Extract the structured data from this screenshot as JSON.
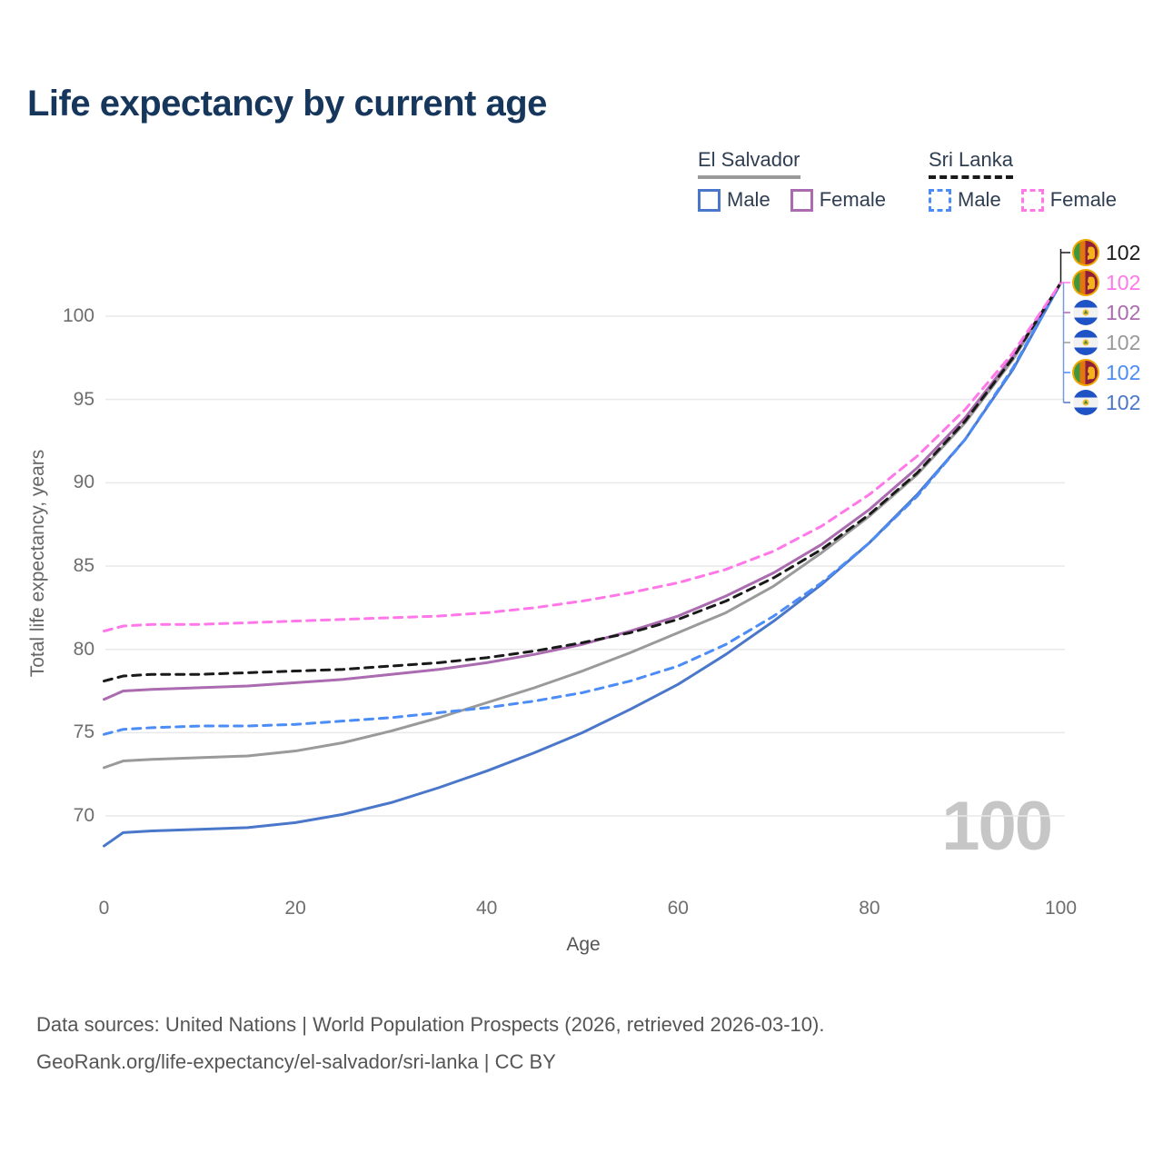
{
  "chart_data": {
    "type": "line",
    "title": "Life expectancy by current age",
    "xlabel": "Age",
    "ylabel": "Total life expectancy, years",
    "x_ticks": [
      0,
      20,
      40,
      60,
      80,
      100
    ],
    "y_ticks": [
      70,
      75,
      80,
      85,
      90,
      95,
      100
    ],
    "xlim": [
      0,
      100
    ],
    "ylim": [
      66,
      103
    ],
    "grid": "horizontal",
    "x": [
      0,
      2,
      5,
      10,
      15,
      20,
      25,
      30,
      35,
      40,
      45,
      50,
      55,
      60,
      65,
      70,
      75,
      80,
      85,
      90,
      95,
      100
    ],
    "series": [
      {
        "name": "El Salvador — Both sexes",
        "country": "El Salvador",
        "sex": "Both",
        "color": "#9a9a9a",
        "dashed": false,
        "values": [
          72.9,
          73.3,
          73.4,
          73.5,
          73.6,
          73.9,
          74.4,
          75.1,
          75.9,
          76.8,
          77.7,
          78.7,
          79.8,
          81.0,
          82.2,
          83.8,
          85.8,
          88.0,
          90.5,
          93.6,
          97.4,
          102
        ]
      },
      {
        "name": "El Salvador — Male",
        "country": "El Salvador",
        "sex": "Male",
        "color": "#4a77c9",
        "dashed": false,
        "values": [
          68.2,
          69.0,
          69.1,
          69.2,
          69.3,
          69.6,
          70.1,
          70.8,
          71.7,
          72.7,
          73.8,
          75.0,
          76.4,
          77.9,
          79.7,
          81.7,
          83.9,
          86.4,
          89.3,
          92.6,
          96.8,
          102
        ]
      },
      {
        "name": "El Salvador — Female",
        "country": "El Salvador",
        "sex": "Female",
        "color": "#ab6bb0",
        "dashed": false,
        "values": [
          77.0,
          77.5,
          77.6,
          77.7,
          77.8,
          78.0,
          78.2,
          78.5,
          78.8,
          79.2,
          79.7,
          80.3,
          81.1,
          82.0,
          83.2,
          84.6,
          86.3,
          88.4,
          90.9,
          93.9,
          97.6,
          102
        ]
      },
      {
        "name": "Sri Lanka — Male",
        "country": "Sri Lanka",
        "sex": "Male",
        "color": "#4b8cf7",
        "dashed": true,
        "values": [
          74.9,
          75.2,
          75.3,
          75.4,
          75.4,
          75.5,
          75.7,
          75.9,
          76.2,
          76.5,
          76.9,
          77.4,
          78.1,
          79.0,
          80.3,
          82.0,
          84.0,
          86.4,
          89.2,
          92.6,
          96.9,
          102
        ]
      },
      {
        "name": "Sri Lanka — Both sexes",
        "country": "Sri Lanka",
        "sex": "Both",
        "color": "#1a1a1a",
        "dashed": true,
        "values": [
          78.1,
          78.4,
          78.5,
          78.5,
          78.6,
          78.7,
          78.8,
          79.0,
          79.2,
          79.5,
          79.9,
          80.4,
          81.0,
          81.8,
          82.9,
          84.3,
          86.0,
          88.1,
          90.6,
          93.7,
          97.5,
          102
        ]
      },
      {
        "name": "Sri Lanka — Female",
        "country": "Sri Lanka",
        "sex": "Female",
        "color": "#ff77e8",
        "dashed": true,
        "values": [
          81.1,
          81.4,
          81.5,
          81.5,
          81.6,
          81.7,
          81.8,
          81.9,
          82.0,
          82.2,
          82.5,
          82.9,
          83.4,
          84.0,
          84.8,
          85.9,
          87.4,
          89.3,
          91.6,
          94.4,
          97.8,
          102
        ]
      }
    ]
  },
  "legend": {
    "groups": [
      {
        "label": "El Salvador",
        "underline_style": "solid",
        "underline_color": "#9a9a9a",
        "items": [
          {
            "label": "Male",
            "color": "#4a77c9",
            "dashed": false
          },
          {
            "label": "Female",
            "color": "#ab6bb0",
            "dashed": false
          }
        ]
      },
      {
        "label": "Sri Lanka",
        "underline_style": "dashed",
        "underline_color": "#1a1a1a",
        "items": [
          {
            "label": "Male",
            "color": "#4b8cf7",
            "dashed": true
          },
          {
            "label": "Female",
            "color": "#ff77e8",
            "dashed": true
          }
        ]
      }
    ]
  },
  "end_labels": {
    "rows": [
      {
        "flag": "sri-lanka",
        "value": "102",
        "color": "#1a1a1a"
      },
      {
        "flag": "sri-lanka",
        "value": "102",
        "color": "#ff77e8"
      },
      {
        "flag": "el-salvador",
        "value": "102",
        "color": "#ab6bb0"
      },
      {
        "flag": "el-salvador",
        "value": "102",
        "color": "#9a9a9a"
      },
      {
        "flag": "sri-lanka",
        "value": "102",
        "color": "#4b8cf7"
      },
      {
        "flag": "el-salvador",
        "value": "102",
        "color": "#4a77c9"
      }
    ]
  },
  "watermark": {
    "text": "100"
  },
  "footer": {
    "line1": "Data sources: United Nations | World Population Prospects (2026, retrieved 2026-03-10).",
    "line2": "GeoRank.org/life-expectancy/el-salvador/sri-lanka | CC BY"
  },
  "colors": {
    "title": "#16365c",
    "grid": "#e9e9e9",
    "axis_text": "#6e6e6e",
    "watermark": "#c6c6c6"
  }
}
